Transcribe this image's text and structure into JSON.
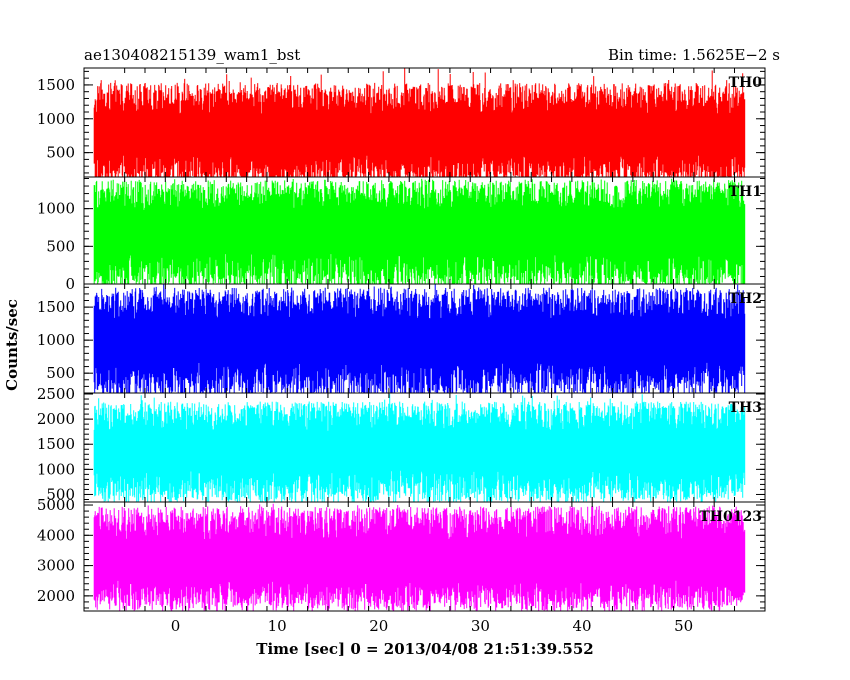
{
  "header": {
    "left": "ae130408215139_wam1_bst",
    "right": "Bin time: 1.5625E−2 s"
  },
  "chart_data": {
    "type": "line",
    "xlabel": "Time [sec] 0 = 2013/04/08 21:51:39.552",
    "ylabel": "Counts/sec",
    "xlim": [
      -9,
      58
    ],
    "xticks": [
      0,
      10,
      20,
      30,
      40,
      50
    ],
    "x_start": -8,
    "x_end": 56,
    "bin_time": 0.015625,
    "grid": false,
    "legend": "none",
    "panels": [
      {
        "name": "TH0",
        "color": "#ff0000",
        "ylim": [
          140,
          1750
        ],
        "yticks": [
          500,
          1000,
          1500
        ],
        "mean": 790,
        "low_envelope": 230,
        "high_envelope": 1300,
        "min": 160,
        "max": 1750
      },
      {
        "name": "TH1",
        "color": "#00ff00",
        "ylim": [
          0,
          1420
        ],
        "yticks": [
          0,
          500,
          1000
        ],
        "mean": 720,
        "low_envelope": 150,
        "high_envelope": 1180,
        "min": 60,
        "max": 1400
      },
      {
        "name": "TH2",
        "color": "#0000ff",
        "ylim": [
          200,
          1850
        ],
        "yticks": [
          500,
          1000,
          1500
        ],
        "mean": 1010,
        "low_envelope": 380,
        "high_envelope": 1550,
        "min": 270,
        "max": 1850
      },
      {
        "name": "TH3",
        "color": "#00ffff",
        "ylim": [
          350,
          2520
        ],
        "yticks": [
          500,
          1000,
          1500,
          2000,
          2500
        ],
        "mean": 1380,
        "low_envelope": 650,
        "high_envelope": 2050,
        "min": 470,
        "max": 2500
      },
      {
        "name": "TH0123",
        "color": "#ff00ff",
        "ylim": [
          1500,
          5100
        ],
        "yticks": [
          2000,
          3000,
          4000,
          5000
        ],
        "mean": 3150,
        "low_envelope": 2000,
        "high_envelope": 4400,
        "min": 1650,
        "max": 5050
      }
    ]
  }
}
